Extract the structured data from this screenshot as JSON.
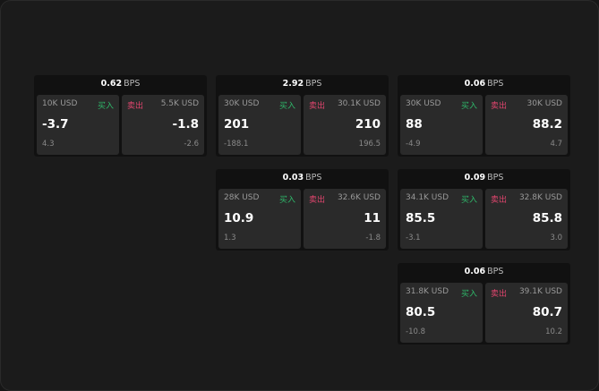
{
  "labels": {
    "buy": "买入",
    "sell": "卖出",
    "unit": "BPS"
  },
  "colors": {
    "buy": "#2fb86a",
    "sell": "#e0456e"
  },
  "widgets": [
    {
      "spread": "0.62",
      "buy": {
        "size": "10K USD",
        "price": "-3.7",
        "change": "4.3"
      },
      "sell": {
        "size": "5.5K USD",
        "price": "-1.8",
        "change": "-2.6"
      }
    },
    {
      "spread": "2.92",
      "buy": {
        "size": "30K USD",
        "price": "201",
        "change": "-188.1"
      },
      "sell": {
        "size": "30.1K USD",
        "price": "210",
        "change": "196.5"
      }
    },
    {
      "spread": "0.06",
      "buy": {
        "size": "30K USD",
        "price": "88",
        "change": "-4.9"
      },
      "sell": {
        "size": "30K USD",
        "price": "88.2",
        "change": "4.7"
      }
    },
    {
      "spread": "0.03",
      "buy": {
        "size": "28K USD",
        "price": "10.9",
        "change": "1.3"
      },
      "sell": {
        "size": "32.6K USD",
        "price": "11",
        "change": "-1.8"
      }
    },
    {
      "spread": "0.09",
      "buy": {
        "size": "34.1K USD",
        "price": "85.5",
        "change": "-3.1"
      },
      "sell": {
        "size": "32.8K USD",
        "price": "85.8",
        "change": "3.0"
      }
    },
    {
      "spread": "0.06",
      "buy": {
        "size": "31.8K USD",
        "price": "80.5",
        "change": "-10.8"
      },
      "sell": {
        "size": "39.1K USD",
        "price": "80.7",
        "change": "10.2"
      }
    }
  ]
}
